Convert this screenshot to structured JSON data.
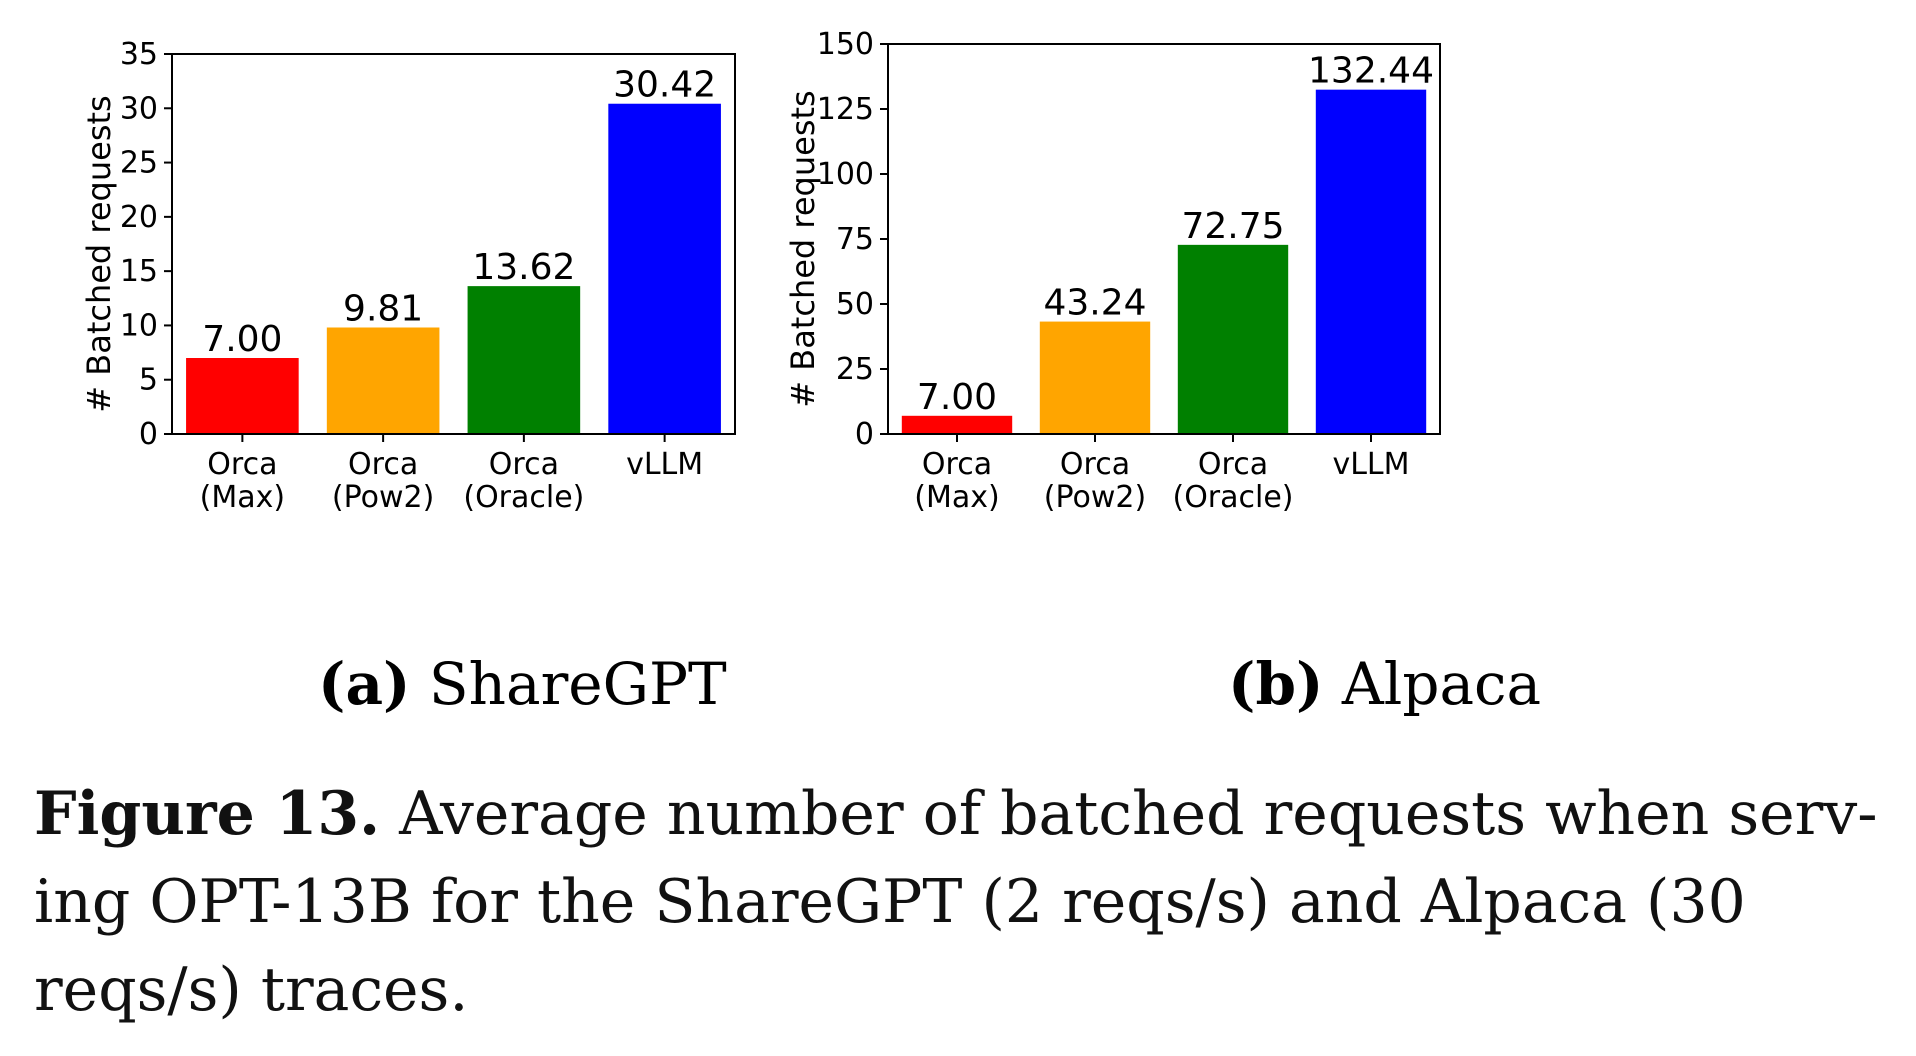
{
  "chart_data": [
    {
      "type": "bar",
      "categories": [
        "Orca\n(Max)",
        "Orca\n(Pow2)",
        "Orca\n(Oracle)",
        "vLLM"
      ],
      "values": [
        7.0,
        9.81,
        13.62,
        30.42
      ],
      "value_labels": [
        "7.00",
        "9.81",
        "13.62",
        "30.42"
      ],
      "colors": [
        "#ff0000",
        "#ffa500",
        "#008000",
        "#0000ff"
      ],
      "ylabel": "# Batched requests",
      "ylim": [
        0,
        35
      ],
      "yticks": [
        0,
        5,
        10,
        15,
        20,
        25,
        30,
        35
      ],
      "grid": false,
      "subcaption": {
        "tag": "(a)",
        "text": "ShareGPT"
      }
    },
    {
      "type": "bar",
      "categories": [
        "Orca\n(Max)",
        "Orca\n(Pow2)",
        "Orca\n(Oracle)",
        "vLLM"
      ],
      "values": [
        7.0,
        43.24,
        72.75,
        132.44
      ],
      "value_labels": [
        "7.00",
        "43.24",
        "72.75",
        "132.44"
      ],
      "colors": [
        "#ff0000",
        "#ffa500",
        "#008000",
        "#0000ff"
      ],
      "ylabel": "# Batched requests",
      "ylim": [
        0,
        150
      ],
      "yticks": [
        0,
        25,
        50,
        75,
        100,
        125,
        150
      ],
      "grid": false,
      "subcaption": {
        "tag": "(b)",
        "text": "Alpaca"
      }
    }
  ],
  "caption": {
    "label": "Figure 13.",
    "lines": [
      " Average number of batched requests when serv-",
      "ing OPT-13B for the ShareGPT (2 reqs/s) and Alpaca (30",
      "reqs/s) traces."
    ]
  }
}
